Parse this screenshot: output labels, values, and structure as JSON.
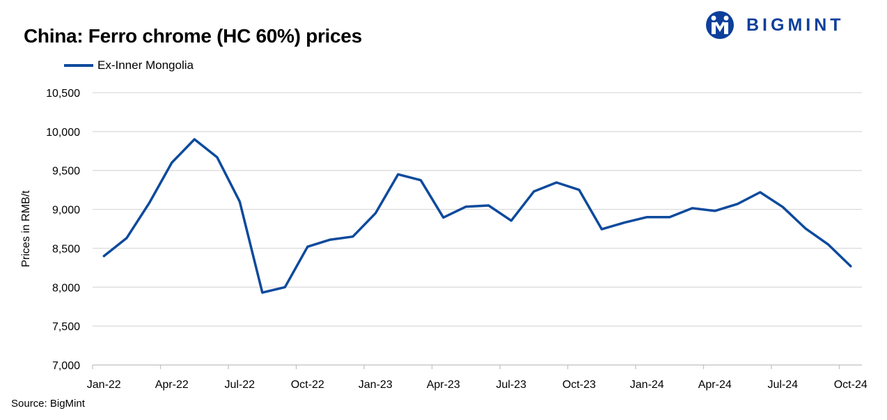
{
  "title": "China: Ferro chrome (HC 60%) prices",
  "logo": {
    "text": "BIGMINT",
    "icon": "bigmint-logo-icon",
    "color": "#0d3f9b"
  },
  "source": "Source: BigMint",
  "chart_data": {
    "type": "line",
    "title": "China: Ferro chrome (HC 60%) prices",
    "xlabel": "",
    "ylabel": "Prices in RMB/t",
    "ylim": [
      7000,
      10500
    ],
    "yticks": [
      7000,
      7500,
      8000,
      8500,
      9000,
      9500,
      10000,
      10500
    ],
    "ytick_labels": [
      "7,000",
      "7,500",
      "8,000",
      "8,500",
      "9,000",
      "9,500",
      "10,000",
      "10,500"
    ],
    "xtick_labels": [
      "Jan-22",
      "Apr-22",
      "Jul-22",
      "Oct-22",
      "Jan-23",
      "Apr-23",
      "Jul-23",
      "Oct-23",
      "Jan-24",
      "Apr-24",
      "Jul-24",
      "Oct-24"
    ],
    "x": [
      "Jan-22",
      "Feb-22",
      "Mar-22",
      "Apr-22",
      "May-22",
      "Jun-22",
      "Jul-22",
      "Aug-22",
      "Sep-22",
      "Oct-22",
      "Nov-22",
      "Dec-22",
      "Jan-23",
      "Feb-23",
      "Mar-23",
      "Apr-23",
      "May-23",
      "Jun-23",
      "Jul-23",
      "Aug-23",
      "Sep-23",
      "Oct-23",
      "Nov-23",
      "Dec-23",
      "Jan-24",
      "Feb-24",
      "Mar-24",
      "Apr-24",
      "May-24",
      "Jun-24",
      "Jul-24",
      "Aug-24",
      "Sep-24",
      "Oct-24"
    ],
    "grid": true,
    "legend_position": "top-left",
    "series": [
      {
        "name": "Ex-Inner Mongolia",
        "color": "#0d4a9c",
        "values": [
          8400,
          8630,
          9080,
          9600,
          9900,
          9670,
          9100,
          7930,
          8000,
          8520,
          8610,
          8650,
          8950,
          9450,
          9375,
          8895,
          9035,
          9050,
          8855,
          9230,
          9345,
          9250,
          8745,
          8830,
          8900,
          8900,
          9015,
          8980,
          9070,
          9220,
          9030,
          8755,
          8550,
          8270
        ]
      }
    ]
  }
}
